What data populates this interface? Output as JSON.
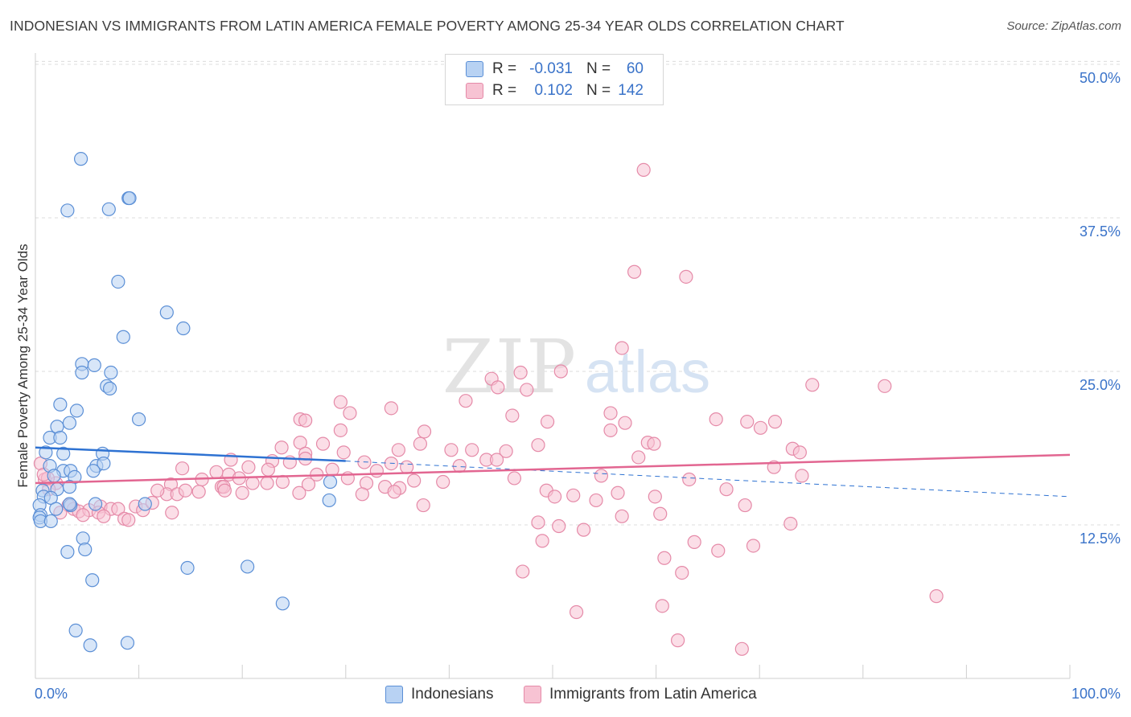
{
  "title": "INDONESIAN VS IMMIGRANTS FROM LATIN AMERICA FEMALE POVERTY AMONG 25-34 YEAR OLDS CORRELATION CHART",
  "source": "Source: ZipAtlas.com",
  "colors": {
    "indonesians_fill": "#b8d2f3",
    "indonesians_stroke": "#5b8fd6",
    "indonesians_line": "#2e72d2",
    "latin_fill": "#f7c3d3",
    "latin_stroke": "#e58aa8",
    "latin_line": "#e26691",
    "axis_text": "#3a73c9",
    "grid": "#dcdcdc"
  },
  "legend": {
    "rows": [
      {
        "r_label": "R =",
        "r_value": "-0.031",
        "n_label": "N =",
        "n_value": "60"
      },
      {
        "r_label": "R =",
        "r_value": "0.102",
        "n_label": "N =",
        "n_value": "142"
      }
    ]
  },
  "chart_data": {
    "type": "scatter",
    "title": "INDONESIAN VS IMMIGRANTS FROM LATIN AMERICA FEMALE POVERTY AMONG 25-34 YEAR OLDS CORRELATION CHART",
    "xlabel": "",
    "ylabel": "Female Poverty Among 25-34 Year Olds",
    "xlim": [
      0,
      100
    ],
    "ylim": [
      0,
      50
    ],
    "x_tick_labels": [
      "0.0%",
      "100.0%"
    ],
    "y_tick_labels": [
      "12.5%",
      "25.0%",
      "37.5%",
      "50.0%"
    ],
    "y_ticks": [
      12.5,
      25.0,
      37.5,
      50.0
    ],
    "grid": true,
    "legend_position": "top-center",
    "series": [
      {
        "name": "Indonesians",
        "r": -0.031,
        "n": 60,
        "trend": {
          "x0": 0,
          "y0": 18.8,
          "x1": 30,
          "y1": 17.7,
          "dash_to_x": 100,
          "dash_to_y": 14.8
        },
        "points": [
          [
            4.4,
            42.3
          ],
          [
            3.1,
            38.1
          ],
          [
            7.1,
            38.2
          ],
          [
            9.0,
            39.1
          ],
          [
            9.1,
            39.1
          ],
          [
            8.0,
            32.3
          ],
          [
            12.7,
            29.8
          ],
          [
            14.3,
            28.5
          ],
          [
            8.5,
            27.8
          ],
          [
            4.5,
            25.6
          ],
          [
            5.7,
            25.5
          ],
          [
            4.5,
            24.9
          ],
          [
            7.3,
            24.9
          ],
          [
            6.9,
            23.8
          ],
          [
            7.2,
            23.6
          ],
          [
            2.4,
            22.3
          ],
          [
            4.0,
            21.8
          ],
          [
            3.3,
            20.8
          ],
          [
            2.1,
            20.5
          ],
          [
            10.0,
            21.1
          ],
          [
            1.4,
            19.6
          ],
          [
            2.4,
            19.6
          ],
          [
            1.0,
            18.4
          ],
          [
            2.7,
            18.3
          ],
          [
            6.5,
            18.3
          ],
          [
            1.4,
            17.3
          ],
          [
            5.9,
            17.3
          ],
          [
            6.6,
            17.5
          ],
          [
            2.7,
            16.9
          ],
          [
            3.4,
            16.9
          ],
          [
            5.6,
            16.9
          ],
          [
            1.8,
            16.5
          ],
          [
            3.8,
            16.4
          ],
          [
            0.7,
            15.3
          ],
          [
            2.1,
            15.4
          ],
          [
            3.3,
            15.6
          ],
          [
            0.8,
            14.8
          ],
          [
            1.5,
            14.7
          ],
          [
            0.4,
            14.1
          ],
          [
            3.4,
            14.1
          ],
          [
            5.8,
            14.2
          ],
          [
            10.6,
            14.2
          ],
          [
            0.5,
            13.3
          ],
          [
            0.4,
            13.1
          ],
          [
            0.5,
            12.8
          ],
          [
            1.5,
            12.8
          ],
          [
            28.5,
            16.0
          ],
          [
            28.4,
            14.5
          ],
          [
            4.6,
            11.4
          ],
          [
            3.1,
            10.3
          ],
          [
            4.8,
            10.5
          ],
          [
            14.7,
            9.0
          ],
          [
            20.5,
            9.1
          ],
          [
            5.5,
            8.0
          ],
          [
            23.9,
            6.1
          ],
          [
            3.9,
            3.9
          ],
          [
            5.3,
            2.7
          ],
          [
            8.9,
            2.9
          ],
          [
            3.3,
            14.2
          ],
          [
            2.0,
            13.8
          ]
        ]
      },
      {
        "name": "Immigrants from Latin America",
        "r": 0.102,
        "n": 142,
        "trend": {
          "x0": 0,
          "y0": 15.9,
          "x1": 100,
          "y1": 18.2
        },
        "points": [
          [
            58.8,
            41.4
          ],
          [
            57.9,
            33.1
          ],
          [
            62.9,
            32.7
          ],
          [
            56.7,
            26.9
          ],
          [
            82.1,
            23.8
          ],
          [
            44.1,
            24.4
          ],
          [
            44.7,
            23.7
          ],
          [
            50.8,
            25.0
          ],
          [
            47.5,
            23.5
          ],
          [
            46.9,
            24.9
          ],
          [
            29.5,
            22.5
          ],
          [
            41.6,
            22.6
          ],
          [
            34.4,
            22.0
          ],
          [
            30.4,
            21.6
          ],
          [
            25.6,
            21.1
          ],
          [
            26.1,
            21.0
          ],
          [
            29.5,
            20.2
          ],
          [
            46.1,
            21.4
          ],
          [
            49.5,
            20.9
          ],
          [
            55.6,
            21.6
          ],
          [
            65.8,
            21.1
          ],
          [
            70.1,
            20.4
          ],
          [
            68.8,
            20.9
          ],
          [
            71.5,
            20.9
          ],
          [
            37.6,
            20.1
          ],
          [
            37.2,
            19.1
          ],
          [
            48.6,
            19.0
          ],
          [
            55.6,
            20.2
          ],
          [
            59.2,
            19.2
          ],
          [
            59.8,
            19.1
          ],
          [
            25.6,
            19.2
          ],
          [
            27.8,
            19.1
          ],
          [
            23.8,
            18.8
          ],
          [
            26.1,
            18.3
          ],
          [
            29.8,
            18.4
          ],
          [
            35.1,
            18.6
          ],
          [
            40.2,
            18.6
          ],
          [
            45.5,
            18.5
          ],
          [
            73.2,
            18.7
          ],
          [
            73.9,
            18.4
          ],
          [
            18.9,
            17.8
          ],
          [
            22.9,
            17.7
          ],
          [
            24.6,
            17.6
          ],
          [
            26.1,
            17.9
          ],
          [
            31.8,
            17.6
          ],
          [
            34.4,
            17.5
          ],
          [
            43.6,
            17.8
          ],
          [
            44.6,
            17.8
          ],
          [
            58.3,
            18.0
          ],
          [
            71.4,
            17.2
          ],
          [
            14.2,
            17.1
          ],
          [
            17.5,
            16.8
          ],
          [
            18.7,
            16.6
          ],
          [
            20.6,
            17.2
          ],
          [
            22.5,
            17.0
          ],
          [
            28.7,
            17.0
          ],
          [
            33.0,
            16.9
          ],
          [
            35.9,
            17.2
          ],
          [
            41.0,
            17.3
          ],
          [
            54.7,
            16.5
          ],
          [
            74.1,
            16.5
          ],
          [
            16.1,
            16.2
          ],
          [
            19.7,
            16.3
          ],
          [
            22.4,
            15.9
          ],
          [
            23.9,
            16.0
          ],
          [
            30.2,
            16.3
          ],
          [
            36.6,
            16.1
          ],
          [
            39.4,
            16.0
          ],
          [
            46.3,
            16.3
          ],
          [
            13.1,
            15.8
          ],
          [
            15.8,
            15.2
          ],
          [
            18.0,
            15.6
          ],
          [
            18.2,
            15.6
          ],
          [
            21.0,
            15.9
          ],
          [
            26.4,
            15.8
          ],
          [
            32.0,
            15.9
          ],
          [
            33.8,
            15.6
          ],
          [
            35.2,
            15.5
          ],
          [
            12.7,
            15.0
          ],
          [
            11.8,
            15.3
          ],
          [
            13.7,
            15.0
          ],
          [
            14.5,
            15.3
          ],
          [
            18.3,
            15.3
          ],
          [
            20.0,
            15.1
          ],
          [
            25.5,
            15.1
          ],
          [
            34.7,
            15.2
          ],
          [
            49.4,
            15.3
          ],
          [
            56.3,
            15.1
          ],
          [
            59.9,
            14.8
          ],
          [
            66.8,
            15.4
          ],
          [
            50.2,
            14.8
          ],
          [
            52.0,
            14.9
          ],
          [
            54.2,
            14.5
          ],
          [
            68.6,
            14.1
          ],
          [
            3.2,
            14.1
          ],
          [
            6.3,
            14.0
          ],
          [
            9.7,
            14.0
          ],
          [
            7.3,
            13.8
          ],
          [
            8.0,
            13.8
          ],
          [
            10.4,
            13.7
          ],
          [
            11.3,
            14.3
          ],
          [
            13.2,
            13.5
          ],
          [
            3.7,
            13.8
          ],
          [
            4.2,
            13.6
          ],
          [
            5.2,
            13.7
          ],
          [
            6.1,
            13.5
          ],
          [
            37.5,
            14.1
          ],
          [
            2.4,
            13.5
          ],
          [
            4.6,
            13.3
          ],
          [
            6.6,
            13.2
          ],
          [
            8.6,
            13.0
          ],
          [
            9.0,
            12.9
          ],
          [
            56.7,
            13.2
          ],
          [
            60.4,
            13.4
          ],
          [
            48.6,
            12.7
          ],
          [
            50.6,
            12.4
          ],
          [
            53.0,
            12.1
          ],
          [
            73.0,
            12.6
          ],
          [
            49.0,
            11.2
          ],
          [
            63.7,
            11.1
          ],
          [
            69.4,
            10.8
          ],
          [
            66.0,
            10.4
          ],
          [
            60.8,
            9.8
          ],
          [
            62.5,
            8.6
          ],
          [
            47.1,
            8.7
          ],
          [
            87.1,
            6.7
          ],
          [
            52.3,
            5.4
          ],
          [
            60.6,
            5.9
          ],
          [
            62.1,
            3.1
          ],
          [
            68.3,
            2.4
          ],
          [
            75.1,
            23.9
          ],
          [
            57.0,
            20.8
          ],
          [
            63.2,
            16.2
          ],
          [
            42.2,
            18.6
          ],
          [
            31.6,
            15.0
          ],
          [
            27.2,
            16.6
          ],
          [
            2.0,
            15.9
          ],
          [
            1.3,
            15.4
          ],
          [
            0.9,
            16.2
          ],
          [
            1.2,
            16.3
          ],
          [
            0.5,
            17.5
          ],
          [
            0.8,
            16.6
          ]
        ]
      }
    ]
  },
  "bottom_legend": [
    {
      "label": "Indonesians"
    },
    {
      "label": "Immigrants from Latin America"
    }
  ]
}
